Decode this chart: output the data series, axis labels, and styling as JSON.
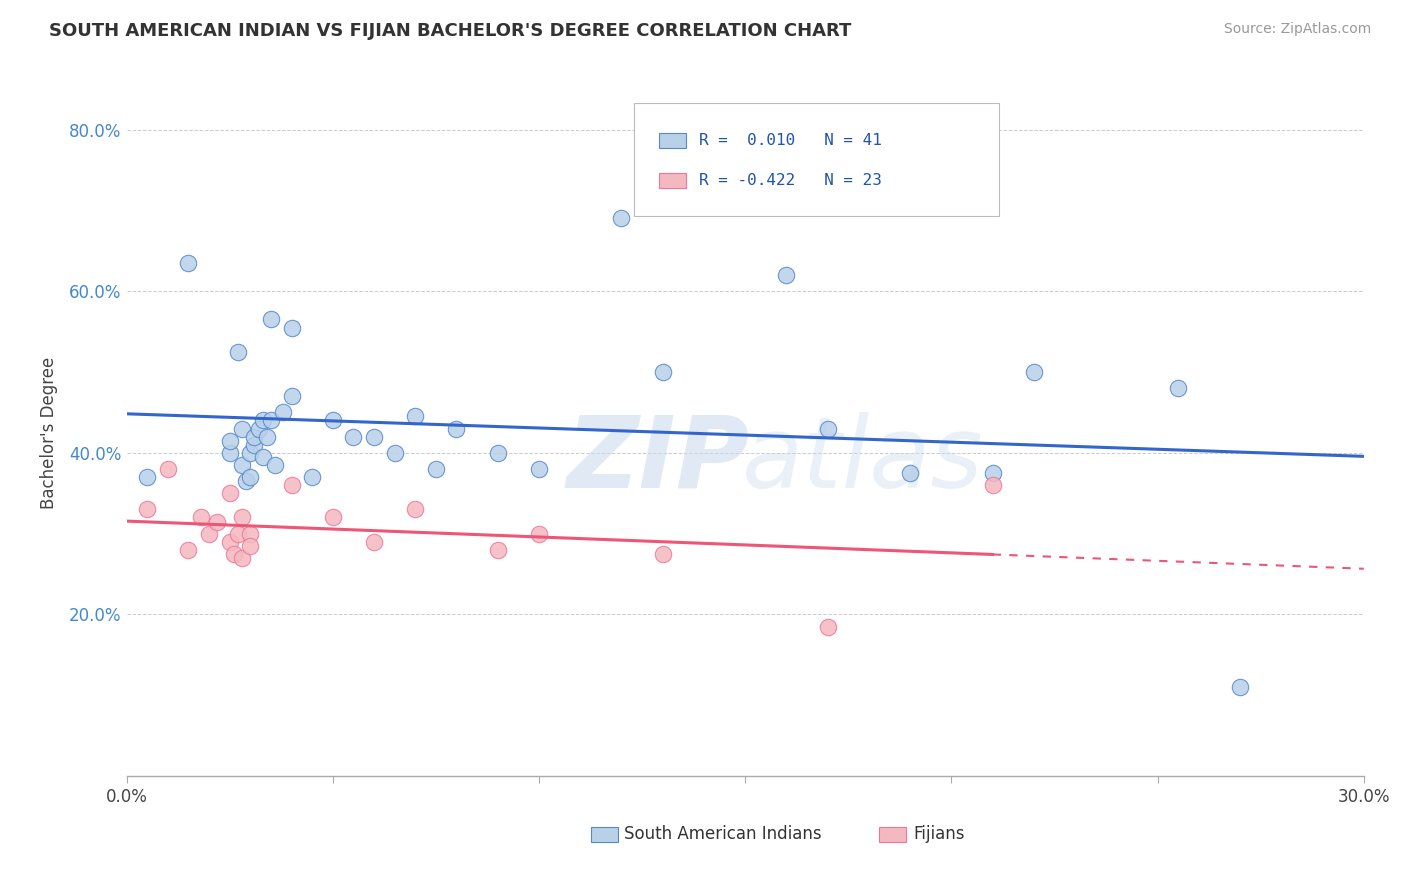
{
  "title": "SOUTH AMERICAN INDIAN VS FIJIAN BACHELOR'S DEGREE CORRELATION CHART",
  "source": "Source: ZipAtlas.com",
  "ylabel_label": "Bachelor's Degree",
  "xlim": [
    0.0,
    0.3
  ],
  "ylim": [
    0.0,
    0.85
  ],
  "legend1_label": "R =  0.010   N = 41",
  "legend2_label": "R = -0.422   N = 23",
  "legend_bottom_label1": "South American Indians",
  "legend_bottom_label2": "Fijians",
  "blue_fill": "#B8D0E8",
  "pink_fill": "#F4B8C0",
  "blue_edge": "#5588CC",
  "pink_edge": "#EE7799",
  "blue_line": "#3366CC",
  "pink_line": "#EE5577",
  "grid_color": "#CCCCCC",
  "blue_scatter_x": [
    0.005,
    0.015,
    0.027,
    0.035,
    0.025,
    0.025,
    0.028,
    0.028,
    0.029,
    0.03,
    0.03,
    0.031,
    0.031,
    0.032,
    0.033,
    0.033,
    0.034,
    0.035,
    0.036,
    0.038,
    0.04,
    0.04,
    0.045,
    0.05,
    0.055,
    0.06,
    0.065,
    0.07,
    0.075,
    0.08,
    0.09,
    0.1,
    0.12,
    0.13,
    0.16,
    0.17,
    0.19,
    0.21,
    0.22,
    0.255,
    0.27
  ],
  "blue_scatter_y": [
    0.37,
    0.635,
    0.525,
    0.565,
    0.4,
    0.415,
    0.43,
    0.385,
    0.365,
    0.4,
    0.37,
    0.41,
    0.42,
    0.43,
    0.44,
    0.395,
    0.42,
    0.44,
    0.385,
    0.45,
    0.47,
    0.555,
    0.37,
    0.44,
    0.42,
    0.42,
    0.4,
    0.445,
    0.38,
    0.43,
    0.4,
    0.38,
    0.69,
    0.5,
    0.62,
    0.43,
    0.375,
    0.375,
    0.5,
    0.48,
    0.11
  ],
  "pink_scatter_x": [
    0.005,
    0.01,
    0.015,
    0.018,
    0.02,
    0.022,
    0.025,
    0.025,
    0.026,
    0.027,
    0.028,
    0.028,
    0.03,
    0.03,
    0.04,
    0.05,
    0.06,
    0.07,
    0.09,
    0.1,
    0.13,
    0.17,
    0.21
  ],
  "pink_scatter_y": [
    0.33,
    0.38,
    0.28,
    0.32,
    0.3,
    0.315,
    0.29,
    0.35,
    0.275,
    0.3,
    0.32,
    0.27,
    0.3,
    0.285,
    0.36,
    0.32,
    0.29,
    0.33,
    0.28,
    0.3,
    0.275,
    0.185,
    0.36
  ],
  "xtick_positions": [
    0.0,
    0.05,
    0.1,
    0.15,
    0.2,
    0.25,
    0.3
  ],
  "xtick_labels_show": [
    "0.0%",
    "",
    "",
    "",
    "",
    "",
    "30.0%"
  ],
  "ytick_positions": [
    0.2,
    0.4,
    0.6,
    0.8
  ],
  "ytick_labels": [
    "20.0%",
    "40.0%",
    "60.0%",
    "80.0%"
  ]
}
